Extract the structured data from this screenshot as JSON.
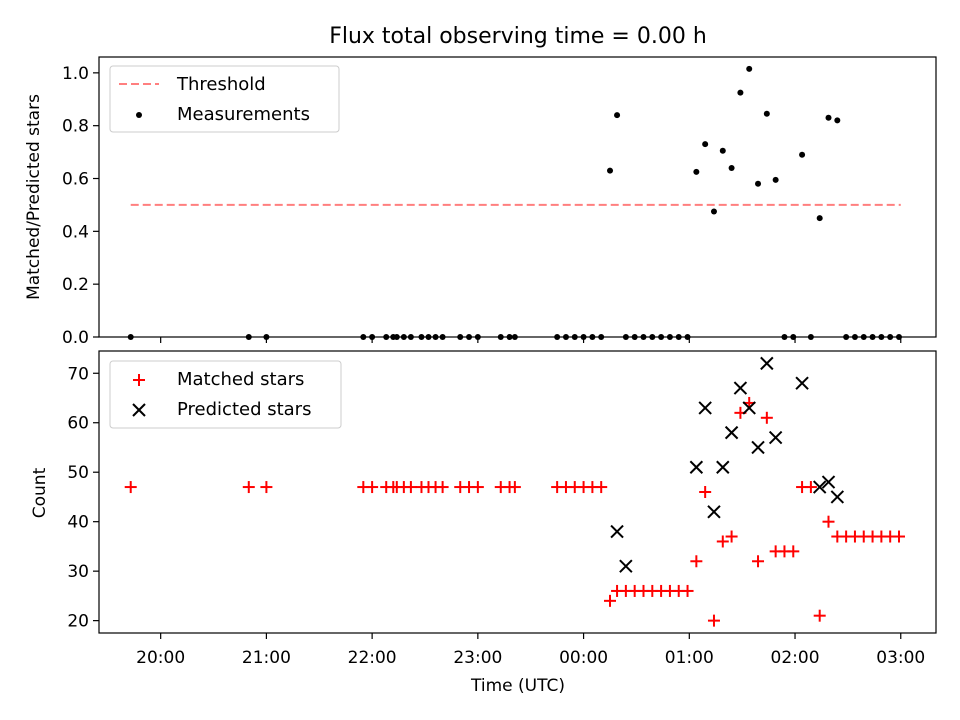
{
  "chart_data": [
    {
      "type": "scatter",
      "title": "Flux total observing time = 0.00 h",
      "xlabel": "",
      "ylabel": "Matched/Predicted stars",
      "ylim": [
        0,
        1.06
      ],
      "yticks": [
        "0.0",
        "0.2",
        "0.4",
        "0.6",
        "0.8",
        "1.0"
      ],
      "xlim": [
        "19:25",
        "03:20"
      ],
      "xticks": [
        "20:00",
        "21:00",
        "22:00",
        "23:00",
        "00:00",
        "01:00",
        "02:00",
        "03:00"
      ],
      "legend_position": "upper-left",
      "legend": [
        "Threshold",
        "Measurements"
      ],
      "threshold": {
        "name": "Threshold",
        "value": 0.5,
        "x": [
          "19:43",
          "03:00"
        ],
        "color": "#ff7f7f"
      },
      "series": [
        {
          "name": "Measurements",
          "marker": "dot",
          "color": "#000000",
          "x": [
            "19:43",
            "20:50",
            "21:00",
            "21:55",
            "22:00",
            "22:08",
            "22:12",
            "22:14",
            "22:18",
            "22:22",
            "22:28",
            "22:32",
            "22:36",
            "22:40",
            "22:50",
            "22:55",
            "23:00",
            "23:13",
            "23:18",
            "23:21",
            "23:45",
            "23:50",
            "23:55",
            "24:00",
            "24:05",
            "24:10",
            "24:15",
            "24:19",
            "24:24",
            "24:29",
            "24:34",
            "24:39",
            "24:44",
            "24:49",
            "24:54",
            "24:59",
            "25:04",
            "25:09",
            "25:14",
            "25:19",
            "25:24",
            "25:29",
            "25:34",
            "25:39",
            "25:44",
            "25:49",
            "25:54",
            "25:59",
            "26:04",
            "26:09",
            "26:14",
            "26:19",
            "26:24",
            "26:29",
            "26:34",
            "26:39",
            "26:44",
            "26:49",
            "26:54",
            "26:59"
          ],
          "y": [
            0,
            0,
            0,
            0,
            0,
            0,
            0,
            0,
            0,
            0,
            0,
            0,
            0,
            0,
            0,
            0,
            0,
            0,
            0,
            0,
            0,
            0,
            0,
            0,
            0,
            0,
            0.63,
            0.84,
            0,
            0,
            0,
            0,
            0,
            0,
            0,
            0,
            0.625,
            0.73,
            0.475,
            0.705,
            0.64,
            0.925,
            1.015,
            0.58,
            0.845,
            0.595,
            0,
            0,
            0.69,
            0,
            0.45,
            0.83,
            0.82,
            0,
            0,
            0,
            0,
            0,
            0,
            0
          ]
        }
      ]
    },
    {
      "type": "scatter",
      "title": "",
      "xlabel": "Time (UTC)",
      "ylabel": "Count",
      "ylim": [
        17.5,
        74.5
      ],
      "yticks": [
        "20",
        "30",
        "40",
        "50",
        "60",
        "70"
      ],
      "xlim": [
        "19:25",
        "03:20"
      ],
      "xticks": [
        "20:00",
        "21:00",
        "22:00",
        "23:00",
        "00:00",
        "01:00",
        "02:00",
        "03:00"
      ],
      "legend_position": "upper-left",
      "legend": [
        "Matched stars",
        "Predicted stars"
      ],
      "series": [
        {
          "name": "Matched stars",
          "marker": "plus",
          "color": "#ff0000",
          "x": [
            "19:43",
            "20:50",
            "21:00",
            "21:55",
            "22:00",
            "22:08",
            "22:12",
            "22:14",
            "22:18",
            "22:22",
            "22:28",
            "22:32",
            "22:36",
            "22:40",
            "22:50",
            "22:55",
            "23:00",
            "23:13",
            "23:18",
            "23:21",
            "23:45",
            "23:50",
            "23:55",
            "24:00",
            "24:05",
            "24:10",
            "24:15",
            "24:19",
            "24:24",
            "24:29",
            "24:34",
            "24:39",
            "24:44",
            "24:49",
            "24:54",
            "24:59",
            "25:04",
            "25:09",
            "25:14",
            "25:19",
            "25:24",
            "25:29",
            "25:34",
            "25:39",
            "25:44",
            "25:49",
            "25:54",
            "25:59",
            "26:04",
            "26:09",
            "26:14",
            "26:19",
            "26:24",
            "26:29",
            "26:34",
            "26:39",
            "26:44",
            "26:49",
            "26:54",
            "26:59"
          ],
          "y": [
            47,
            47,
            47,
            47,
            47,
            47,
            47,
            47,
            47,
            47,
            47,
            47,
            47,
            47,
            47,
            47,
            47,
            47,
            47,
            47,
            47,
            47,
            47,
            47,
            47,
            47,
            24,
            26,
            26,
            26,
            26,
            26,
            26,
            26,
            26,
            26,
            32,
            46,
            20,
            36,
            37,
            62,
            64,
            32,
            61,
            34,
            34,
            34,
            47,
            47,
            21,
            40,
            37,
            37,
            37,
            37,
            37,
            37,
            37,
            37
          ]
        },
        {
          "name": "Predicted stars",
          "marker": "x",
          "color": "#000000",
          "x": [
            "24:19",
            "24:24",
            "25:04",
            "25:09",
            "25:14",
            "25:19",
            "25:24",
            "25:29",
            "25:34",
            "25:39",
            "25:44",
            "25:49",
            "26:04",
            "26:14",
            "26:19",
            "26:24"
          ],
          "y": [
            38,
            31,
            51,
            63,
            42,
            51,
            58,
            67,
            63,
            55,
            72,
            57,
            68,
            47,
            48,
            45
          ]
        }
      ]
    }
  ]
}
